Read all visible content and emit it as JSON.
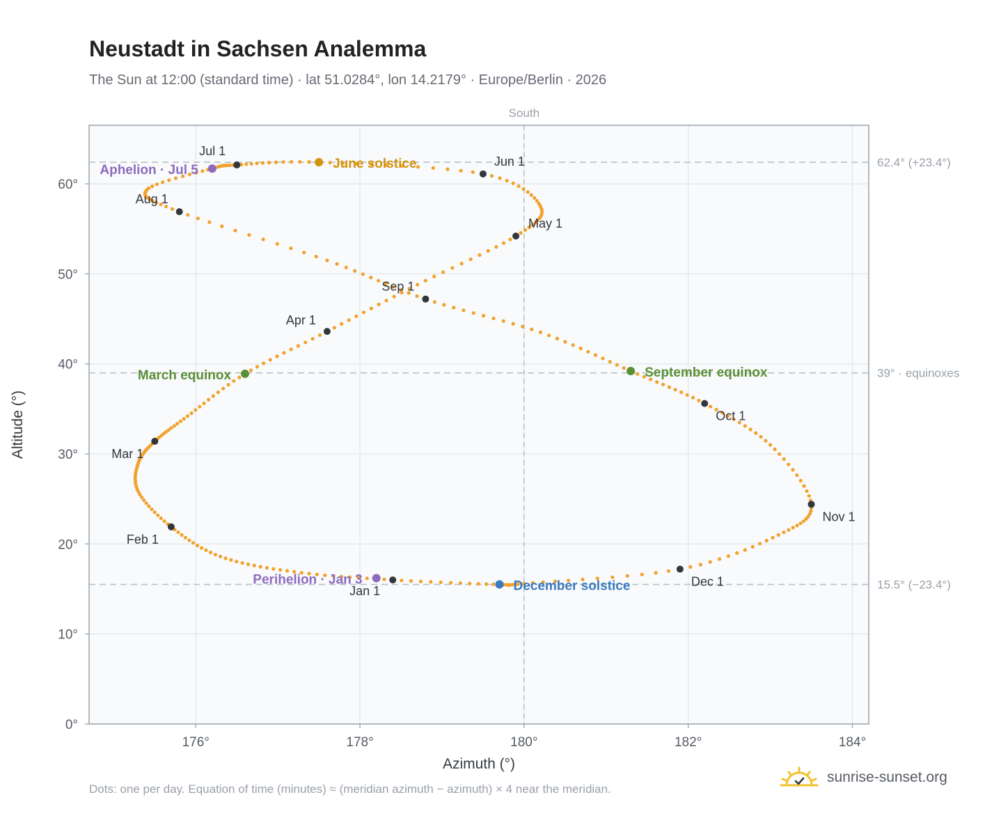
{
  "title": "Neustadt in Sachsen Analemma",
  "subtitle": "The Sun at 12:00 (standard time) · lat 51.0284°, lon 14.2179° · Europe/Berlin · 2026",
  "footnote": "Dots: one per day. Equation of time (minutes) ≈ (meridian azimuth − azimuth) × 4 near the meridian.",
  "brand": "sunrise-sunset.org",
  "brand_icon": "sun-logo-icon",
  "colors": {
    "curve": "#f2a22c",
    "month_dot": "#33363b",
    "solstice_june": "#d4930f",
    "solstice_december": "#3a7abf",
    "equinox": "#5a8f35",
    "apsis": "#8e6bbd",
    "reference_line": "#b9c0c8",
    "plot_background": "#f8fafc"
  },
  "chart_data": {
    "type": "scatter",
    "xlabel": "Azimuth (°)",
    "ylabel": "Altitude (°)",
    "xlim": [
      174.7,
      184.2
    ],
    "ylim": [
      0,
      66.5
    ],
    "xticks": [
      176,
      178,
      180,
      182,
      184
    ],
    "xtick_labels": [
      "176°",
      "178°",
      "180°",
      "182°",
      "184°"
    ],
    "yticks": [
      0,
      10,
      20,
      30,
      40,
      50,
      60
    ],
    "ytick_labels": [
      "0°",
      "10°",
      "20°",
      "30°",
      "40°",
      "50°",
      "60°"
    ],
    "grid": true,
    "reference_lines": {
      "vertical": {
        "x": 180,
        "label": "South"
      },
      "horizontal": [
        {
          "y": 62.4,
          "label": "62.4° (+23.4°)"
        },
        {
          "y": 39.0,
          "label": "39° · equinoxes"
        },
        {
          "y": 15.5,
          "label": "15.5° (−23.4°)"
        }
      ]
    },
    "series": [
      {
        "name": "",
        "points": [
          [
            178.4,
            16.0
          ],
          [
            177.2,
            16.9
          ],
          [
            176.3,
            18.6
          ],
          [
            175.7,
            21.9
          ],
          [
            175.3,
            25.8
          ],
          [
            175.3,
            29.0
          ],
          [
            175.5,
            31.4
          ],
          [
            175.9,
            34.2
          ],
          [
            176.6,
            38.9
          ],
          [
            177.6,
            43.6
          ],
          [
            178.7,
            48.8
          ],
          [
            179.9,
            54.2
          ],
          [
            180.2,
            57.5
          ],
          [
            179.5,
            61.1
          ],
          [
            177.5,
            62.4
          ],
          [
            176.5,
            62.1
          ],
          [
            176.2,
            61.7
          ],
          [
            175.4,
            59.3
          ],
          [
            175.8,
            56.9
          ],
          [
            177.6,
            51.5
          ],
          [
            178.8,
            47.2
          ],
          [
            180.2,
            43.5
          ],
          [
            181.3,
            39.2
          ],
          [
            182.2,
            35.6
          ],
          [
            183.0,
            31.0
          ],
          [
            183.5,
            24.4
          ],
          [
            183.1,
            21.0
          ],
          [
            181.9,
            17.2
          ],
          [
            180.0,
            15.6
          ],
          [
            179.7,
            15.5
          ],
          [
            178.4,
            16.0
          ]
        ]
      }
    ],
    "month_markers": [
      {
        "label": "Jan 1",
        "x": 178.4,
        "y": 16.0
      },
      {
        "label": "Feb 1",
        "x": 175.7,
        "y": 21.9
      },
      {
        "label": "Mar 1",
        "x": 175.5,
        "y": 31.4
      },
      {
        "label": "Apr 1",
        "x": 177.6,
        "y": 43.6
      },
      {
        "label": "May 1",
        "x": 179.9,
        "y": 54.2
      },
      {
        "label": "Jun 1",
        "x": 179.5,
        "y": 61.1
      },
      {
        "label": "Jul 1",
        "x": 176.5,
        "y": 62.1
      },
      {
        "label": "Aug 1",
        "x": 175.8,
        "y": 56.9
      },
      {
        "label": "Sep 1",
        "x": 178.8,
        "y": 47.2
      },
      {
        "label": "Oct 1",
        "x": 182.2,
        "y": 35.6
      },
      {
        "label": "Nov 1",
        "x": 183.5,
        "y": 24.4
      },
      {
        "label": "Dec 1",
        "x": 181.9,
        "y": 17.2
      }
    ],
    "events": [
      {
        "label": "June solstice",
        "x": 177.5,
        "y": 62.4,
        "color": "#d4930f"
      },
      {
        "label": "December solstice",
        "x": 179.7,
        "y": 15.5,
        "color": "#3a7abf"
      },
      {
        "label": "March equinox",
        "x": 176.6,
        "y": 38.9,
        "color": "#5a8f35"
      },
      {
        "label": "September equinox",
        "x": 181.3,
        "y": 39.2,
        "color": "#5a8f35"
      },
      {
        "label": "Aphelion · Jul 5",
        "x": 176.2,
        "y": 61.7,
        "color": "#8e6bbd"
      },
      {
        "label": "Perihelion · Jan 3",
        "x": 178.2,
        "y": 16.2,
        "color": "#8e6bbd"
      }
    ]
  }
}
